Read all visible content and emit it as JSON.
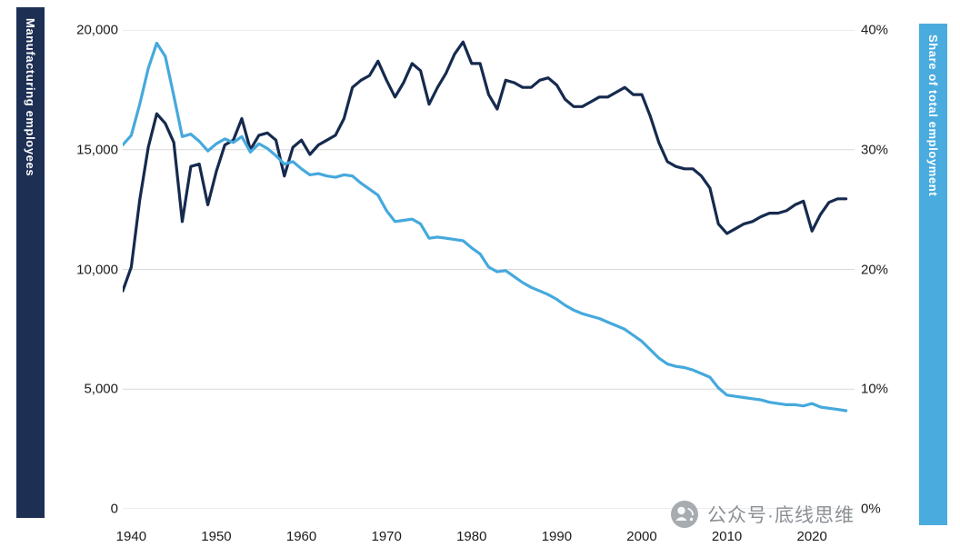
{
  "axis_bars": {
    "left": {
      "label": "Manufacturing employees",
      "color": "#1d3054"
    },
    "right": {
      "label": "Share of total employment",
      "color": "#4aabdf"
    }
  },
  "watermark": {
    "text": "公众号·底线思维",
    "icon": "wechat-official-account-icon",
    "color": "#8b9095"
  },
  "chart_data": {
    "type": "line",
    "title": "",
    "grid": true,
    "gridline_color": "#d9d9d9",
    "x": [
      1939,
      1940,
      1941,
      1942,
      1943,
      1944,
      1945,
      1946,
      1947,
      1948,
      1949,
      1950,
      1951,
      1952,
      1953,
      1954,
      1955,
      1956,
      1957,
      1958,
      1959,
      1960,
      1961,
      1962,
      1963,
      1964,
      1965,
      1966,
      1967,
      1968,
      1969,
      1970,
      1971,
      1972,
      1973,
      1974,
      1975,
      1976,
      1977,
      1978,
      1979,
      1980,
      1981,
      1982,
      1983,
      1984,
      1985,
      1986,
      1987,
      1988,
      1989,
      1990,
      1991,
      1992,
      1993,
      1994,
      1995,
      1996,
      1997,
      1998,
      1999,
      2000,
      2001,
      2002,
      2003,
      2004,
      2005,
      2006,
      2007,
      2008,
      2009,
      2010,
      2011,
      2012,
      2013,
      2014,
      2015,
      2016,
      2017,
      2018,
      2019,
      2020,
      2021,
      2022,
      2023,
      2024
    ],
    "series": [
      {
        "name": "Manufacturing employees (thousands)",
        "axis": "left",
        "color": "#162a4e",
        "values": [
          9100,
          10100,
          12900,
          15100,
          16500,
          16100,
          15300,
          12000,
          14300,
          14400,
          12700,
          14100,
          15200,
          15400,
          16300,
          15000,
          15600,
          15700,
          15400,
          13900,
          15100,
          15400,
          14800,
          15200,
          15400,
          15600,
          16300,
          17600,
          17900,
          18100,
          18700,
          17900,
          17200,
          17800,
          18600,
          18300,
          16900,
          17600,
          18200,
          19000,
          19500,
          18600,
          18600,
          17300,
          16700,
          17900,
          17800,
          17600,
          17600,
          17900,
          18000,
          17700,
          17100,
          16800,
          16800,
          17000,
          17200,
          17200,
          17400,
          17600,
          17300,
          17300,
          16400,
          15300,
          14500,
          14300,
          14200,
          14200,
          13900,
          13400,
          11900,
          11500,
          11700,
          11900,
          12000,
          12200,
          12350,
          12350,
          12450,
          12700,
          12850,
          11600,
          12300,
          12800,
          12950,
          12950
        ]
      },
      {
        "name": "Share of total employment (%)",
        "axis": "right",
        "color": "#45a9dd",
        "values": [
          30.4,
          31.2,
          33.8,
          36.8,
          38.9,
          37.8,
          34.5,
          31.1,
          31.3,
          30.7,
          29.9,
          30.5,
          30.9,
          30.6,
          31.1,
          29.8,
          30.5,
          30.1,
          29.5,
          28.8,
          29.0,
          28.4,
          27.9,
          28.0,
          27.8,
          27.7,
          27.9,
          27.8,
          27.2,
          26.7,
          26.2,
          24.9,
          24.0,
          24.1,
          24.2,
          23.8,
          22.6,
          22.7,
          22.6,
          22.5,
          22.4,
          21.8,
          21.3,
          20.2,
          19.8,
          19.9,
          19.4,
          18.9,
          18.5,
          18.2,
          17.9,
          17.5,
          17.0,
          16.6,
          16.3,
          16.1,
          15.9,
          15.6,
          15.3,
          15.0,
          14.5,
          14.0,
          13.3,
          12.6,
          12.1,
          11.9,
          11.8,
          11.6,
          11.3,
          11.0,
          10.1,
          9.5,
          9.4,
          9.3,
          9.2,
          9.1,
          8.9,
          8.8,
          8.7,
          8.7,
          8.6,
          8.8,
          8.5,
          8.4,
          8.3,
          8.2
        ]
      }
    ],
    "left_axis": {
      "title": "Manufacturing employees",
      "ticks": [
        "20,000",
        "15,000",
        "10,000",
        "5,000",
        "0"
      ],
      "values": [
        20000,
        15000,
        10000,
        5000,
        0
      ],
      "range": [
        0,
        20000
      ]
    },
    "right_axis": {
      "title": "Share of total employment",
      "ticks": [
        "40%",
        "30%",
        "20%",
        "10%",
        "0%"
      ],
      "values": [
        40,
        30,
        20,
        10,
        0
      ],
      "range": [
        0,
        40
      ]
    },
    "x_axis": {
      "ticks": [
        1940,
        1950,
        1960,
        1970,
        1980,
        1990,
        2000,
        2010,
        2020
      ],
      "range": [
        1939,
        2025
      ]
    },
    "legend": "none (labels on colored side bars)"
  }
}
